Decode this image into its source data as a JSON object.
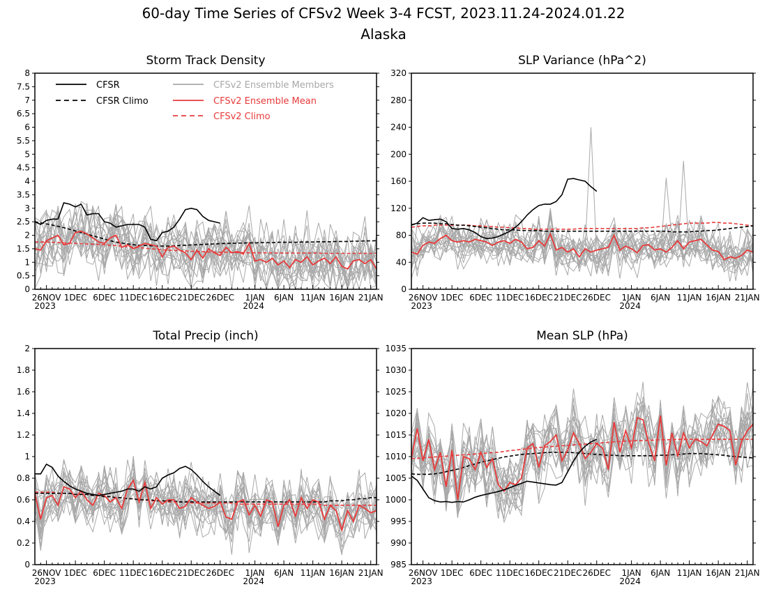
{
  "title": "60-day Time Series of CFSv2 Week 3-4 FCST, 2023.11.24-2024.01.22",
  "subtitle": "Alaska",
  "colors": {
    "cfsr": "#000000",
    "cfsr_climo": "#000000",
    "members": "#a8a8a8",
    "ens_mean": "#e83a3a",
    "cfsv2_climo": "#e83a3a"
  },
  "legend": {
    "cfsr": "CFSR",
    "cfsr_climo": "CFSR Climo",
    "members": "CFSv2 Ensemble Members",
    "ens_mean": "CFSv2 Ensemble Mean",
    "cfsv2_climo": "CFSv2 Climo"
  },
  "x_ticks": [
    {
      "day": 2,
      "label": "26NOV",
      "year": "2023"
    },
    {
      "day": 7,
      "label": "1DEC",
      "year": ""
    },
    {
      "day": 12,
      "label": "6DEC",
      "year": ""
    },
    {
      "day": 17,
      "label": "11DEC",
      "year": ""
    },
    {
      "day": 22,
      "label": "16DEC",
      "year": ""
    },
    {
      "day": 27,
      "label": "21DEC",
      "year": ""
    },
    {
      "day": 32,
      "label": "26DEC",
      "year": ""
    },
    {
      "day": 38,
      "label": "1JAN",
      "year": "2024"
    },
    {
      "day": 43,
      "label": "6JAN",
      "year": ""
    },
    {
      "day": 48,
      "label": "11JAN",
      "year": ""
    },
    {
      "day": 53,
      "label": "16JAN",
      "year": ""
    },
    {
      "day": 58,
      "label": "21JAN",
      "year": ""
    }
  ],
  "chart_data": [
    {
      "type": "line",
      "title": "Storm Track Density",
      "xrange": [
        0,
        59
      ],
      "ylim": [
        0,
        8
      ],
      "yticks": [
        0,
        0.5,
        1,
        1.5,
        2,
        2.5,
        3,
        3.5,
        4,
        4.5,
        5,
        5.5,
        6,
        6.5,
        7,
        7.5,
        8
      ],
      "show_legend": true,
      "cfsr": [
        2.5,
        2.4,
        2.55,
        2.6,
        2.6,
        3.2,
        3.15,
        3.05,
        3.15,
        2.75,
        2.8,
        2.8,
        2.5,
        2.45,
        2.3,
        2.35,
        2.4,
        2.4,
        2.4,
        2.3,
        1.85,
        1.8,
        2.1,
        2.15,
        2.3,
        2.6,
        2.95,
        3.0,
        2.95,
        2.7,
        2.55,
        2.5,
        2.45
      ],
      "cfsr_climo": [
        2.5,
        2.46,
        2.42,
        2.38,
        2.33,
        2.28,
        2.22,
        2.16,
        2.1,
        2.04,
        1.98,
        1.92,
        1.86,
        1.8,
        1.75,
        1.71,
        1.68,
        1.65,
        1.63,
        1.62,
        1.61,
        1.6,
        1.6,
        1.6,
        1.61,
        1.62,
        1.63,
        1.64,
        1.65,
        1.66,
        1.67,
        1.68,
        1.69,
        1.7,
        1.7,
        1.71,
        1.71,
        1.72,
        1.72,
        1.73,
        1.73,
        1.73,
        1.74,
        1.74,
        1.74,
        1.74,
        1.75,
        1.75,
        1.75,
        1.76,
        1.76,
        1.76,
        1.77,
        1.77,
        1.77,
        1.78,
        1.78,
        1.79,
        1.79,
        1.8
      ],
      "ens_mean": [
        1.5,
        1.45,
        1.8,
        1.9,
        2.0,
        1.65,
        1.7,
        2.1,
        2.15,
        2.05,
        1.9,
        1.75,
        1.7,
        1.9,
        2.0,
        1.55,
        1.65,
        1.5,
        1.6,
        1.7,
        1.65,
        1.6,
        1.2,
        1.55,
        1.6,
        1.45,
        1.35,
        1.1,
        1.45,
        1.15,
        1.5,
        1.35,
        1.25,
        1.55,
        1.35,
        1.4,
        1.3,
        1.7,
        1.05,
        1.1,
        1.0,
        1.15,
        0.9,
        1.05,
        0.8,
        1.1,
        1.0,
        1.2,
        0.9,
        1.05,
        1.15,
        0.95,
        1.2,
        0.85,
        0.75,
        1.05,
        1.1,
        0.95,
        1.1,
        0.75
      ],
      "cfsv2_climo": [
        1.75,
        1.75,
        1.75,
        1.74,
        1.73,
        1.72,
        1.71,
        1.7,
        1.69,
        1.68,
        1.67,
        1.66,
        1.65,
        1.63,
        1.62,
        1.6,
        1.58,
        1.56,
        1.54,
        1.52,
        1.5,
        1.48,
        1.46,
        1.45,
        1.44,
        1.43,
        1.42,
        1.41,
        1.4,
        1.39,
        1.38,
        1.38,
        1.37,
        1.37,
        1.36,
        1.36,
        1.36,
        1.35,
        1.35,
        1.35,
        1.35,
        1.35,
        1.34,
        1.34,
        1.34,
        1.34,
        1.34,
        1.34,
        1.34,
        1.34,
        1.33,
        1.33,
        1.33,
        1.33,
        1.33,
        1.33,
        1.33,
        1.33,
        1.33,
        1.33
      ],
      "members": {
        "count": 18,
        "spread": 0.75,
        "seed": 11
      }
    },
    {
      "type": "line",
      "title": "SLP Variance (hPa^2)",
      "xrange": [
        0,
        59
      ],
      "ylim": [
        0,
        320
      ],
      "yticks": [
        0,
        40,
        80,
        120,
        160,
        200,
        240,
        280,
        320
      ],
      "show_legend": false,
      "cfsr": [
        95,
        98,
        106,
        102,
        103,
        104,
        100,
        90,
        89,
        90,
        88,
        84,
        78,
        75,
        76,
        78,
        82,
        86,
        92,
        100,
        110,
        118,
        124,
        126,
        126,
        130,
        140,
        163,
        164,
        162,
        160,
        152,
        145
      ],
      "cfsr_climo": [
        96,
        97,
        98,
        98,
        98,
        97,
        97,
        96,
        95,
        95,
        94,
        93,
        92,
        91,
        90,
        89,
        88,
        88,
        88,
        87,
        87,
        87,
        87,
        86,
        86,
        86,
        86,
        86,
        86,
        86,
        86,
        86,
        86,
        86,
        86,
        86,
        86,
        86,
        86,
        86,
        86,
        86,
        86,
        86,
        86,
        85,
        85,
        85,
        85,
        86,
        86,
        87,
        87,
        88,
        89,
        90,
        91,
        92,
        93,
        94
      ],
      "ens_mean": [
        55,
        52,
        65,
        70,
        68,
        75,
        80,
        72,
        70,
        72,
        70,
        74,
        72,
        70,
        65,
        70,
        72,
        68,
        74,
        70,
        60,
        62,
        72,
        64,
        82,
        58,
        62,
        55,
        60,
        48,
        60,
        55,
        58,
        60,
        62,
        80,
        58,
        64,
        60,
        54,
        65,
        66,
        58,
        60,
        55,
        62,
        72,
        60,
        70,
        72,
        74,
        66,
        58,
        56,
        44,
        48,
        46,
        50,
        58,
        55
      ],
      "cfsv2_climo": [
        92,
        93,
        94,
        94,
        95,
        95,
        95,
        95,
        95,
        95,
        95,
        94,
        94,
        93,
        93,
        92,
        92,
        91,
        91,
        90,
        90,
        89,
        89,
        89,
        89,
        89,
        89,
        89,
        89,
        90,
        90,
        90,
        90,
        90,
        90,
        90,
        90,
        90,
        90,
        90,
        91,
        91,
        92,
        93,
        94,
        95,
        96,
        97,
        98,
        98,
        98,
        98,
        99,
        99,
        98,
        98,
        97,
        96,
        95,
        94
      ],
      "members": {
        "count": 18,
        "spread": 20,
        "seed": 23
      },
      "member_spikes": [
        {
          "day": 31,
          "value": 240
        },
        {
          "day": 47,
          "value": 190
        },
        {
          "day": 44,
          "value": 165
        }
      ]
    },
    {
      "type": "line",
      "title": "Total Precip (inch)",
      "xrange": [
        0,
        59
      ],
      "ylim": [
        0,
        2
      ],
      "yticks": [
        0,
        0.2,
        0.4,
        0.6,
        0.8,
        1,
        1.2,
        1.4,
        1.6,
        1.8,
        2
      ],
      "show_legend": false,
      "cfsr": [
        0.84,
        0.84,
        0.93,
        0.9,
        0.82,
        0.77,
        0.73,
        0.7,
        0.68,
        0.66,
        0.65,
        0.64,
        0.65,
        0.66,
        0.67,
        0.68,
        0.7,
        0.7,
        0.68,
        0.72,
        0.7,
        0.72,
        0.8,
        0.83,
        0.85,
        0.89,
        0.91,
        0.88,
        0.83,
        0.77,
        0.72,
        0.68,
        0.64
      ],
      "cfsr_climo": [
        0.66,
        0.66,
        0.66,
        0.66,
        0.66,
        0.66,
        0.66,
        0.65,
        0.65,
        0.65,
        0.64,
        0.64,
        0.63,
        0.63,
        0.62,
        0.62,
        0.61,
        0.61,
        0.6,
        0.6,
        0.6,
        0.59,
        0.59,
        0.59,
        0.59,
        0.58,
        0.58,
        0.58,
        0.58,
        0.58,
        0.58,
        0.58,
        0.58,
        0.58,
        0.58,
        0.58,
        0.58,
        0.58,
        0.58,
        0.58,
        0.58,
        0.58,
        0.58,
        0.58,
        0.58,
        0.58,
        0.58,
        0.58,
        0.58,
        0.58,
        0.58,
        0.59,
        0.59,
        0.59,
        0.6,
        0.6,
        0.61,
        0.61,
        0.62,
        0.62
      ],
      "ens_mean": [
        0.66,
        0.42,
        0.62,
        0.64,
        0.55,
        0.72,
        0.7,
        0.62,
        0.68,
        0.6,
        0.55,
        0.66,
        0.64,
        0.58,
        0.62,
        0.52,
        0.7,
        0.78,
        0.58,
        0.76,
        0.52,
        0.62,
        0.56,
        0.6,
        0.6,
        0.52,
        0.54,
        0.62,
        0.58,
        0.55,
        0.52,
        0.54,
        0.58,
        0.44,
        0.42,
        0.58,
        0.6,
        0.46,
        0.55,
        0.45,
        0.6,
        0.58,
        0.35,
        0.55,
        0.6,
        0.45,
        0.62,
        0.52,
        0.6,
        0.58,
        0.42,
        0.55,
        0.5,
        0.32,
        0.5,
        0.4,
        0.55,
        0.52,
        0.48,
        0.5
      ],
      "cfsv2_climo": [
        0.67,
        0.67,
        0.67,
        0.67,
        0.66,
        0.66,
        0.66,
        0.65,
        0.65,
        0.65,
        0.64,
        0.64,
        0.63,
        0.63,
        0.62,
        0.62,
        0.61,
        0.61,
        0.6,
        0.6,
        0.59,
        0.59,
        0.59,
        0.58,
        0.58,
        0.58,
        0.58,
        0.57,
        0.57,
        0.57,
        0.57,
        0.57,
        0.57,
        0.57,
        0.57,
        0.56,
        0.56,
        0.56,
        0.56,
        0.56,
        0.56,
        0.56,
        0.56,
        0.56,
        0.56,
        0.56,
        0.56,
        0.56,
        0.56,
        0.56,
        0.55,
        0.55,
        0.55,
        0.55,
        0.55,
        0.55,
        0.55,
        0.55,
        0.55,
        0.55
      ],
      "members": {
        "count": 18,
        "spread": 0.16,
        "seed": 37
      }
    },
    {
      "type": "line",
      "title": "Mean SLP (hPa)",
      "xrange": [
        0,
        59
      ],
      "ylim": [
        985,
        1035
      ],
      "yticks": [
        985,
        990,
        995,
        1000,
        1005,
        1010,
        1015,
        1020,
        1025,
        1030,
        1035
      ],
      "show_legend": false,
      "cfsr": [
        1005.5,
        1004.5,
        1002.5,
        1000.5,
        999.8,
        999.5,
        999.6,
        999.4,
        999.6,
        999.5,
        1000.0,
        1000.6,
        1001.0,
        1001.3,
        1001.6,
        1001.9,
        1002.3,
        1002.8,
        1003.3,
        1003.8,
        1004.3,
        1004.1,
        1003.9,
        1003.7,
        1003.5,
        1003.4,
        1004.0,
        1006.5,
        1009.0,
        1011.0,
        1012.4,
        1013.4,
        1014.0
      ],
      "cfsr_climo": [
        1006.0,
        1005.9,
        1005.9,
        1005.9,
        1006.0,
        1006.2,
        1006.5,
        1006.8,
        1007.1,
        1007.5,
        1007.9,
        1008.3,
        1008.7,
        1009.0,
        1009.3,
        1009.6,
        1009.9,
        1010.1,
        1010.3,
        1010.5,
        1010.6,
        1010.7,
        1010.8,
        1010.9,
        1011.0,
        1011.0,
        1011.0,
        1011.0,
        1010.9,
        1010.8,
        1010.7,
        1010.6,
        1010.5,
        1010.4,
        1010.3,
        1010.3,
        1010.2,
        1010.2,
        1010.2,
        1010.2,
        1010.2,
        1010.2,
        1010.2,
        1010.3,
        1010.3,
        1010.4,
        1010.5,
        1010.6,
        1010.7,
        1010.7,
        1010.7,
        1010.6,
        1010.5,
        1010.4,
        1010.3,
        1010.1,
        1010.0,
        1009.9,
        1009.8,
        1009.7
      ],
      "ens_mean": [
        1009.5,
        1016.5,
        1009.0,
        1014.0,
        1007.0,
        1011.0,
        1003.0,
        1011.5,
        1000.0,
        1010.0,
        1009.5,
        1007.0,
        1011.0,
        1007.5,
        1009.5,
        1003.5,
        1002.0,
        1004.0,
        1003.5,
        1005.0,
        1012.0,
        1013.0,
        1007.5,
        1012.5,
        1013.5,
        1015.0,
        1009.0,
        1011.5,
        1015.5,
        1013.0,
        1009.5,
        1011.0,
        1013.0,
        1012.0,
        1007.0,
        1018.0,
        1011.0,
        1016.0,
        1012.0,
        1019.0,
        1018.5,
        1013.0,
        1009.0,
        1019.5,
        1008.0,
        1015.5,
        1010.0,
        1015.5,
        1012.0,
        1014.0,
        1013.5,
        1012.5,
        1015.0,
        1017.5,
        1017.0,
        1016.0,
        1008.0,
        1013.5,
        1016.0,
        1017.5
      ],
      "cfsv2_climo": [
        1009.5,
        1009.6,
        1009.7,
        1009.8,
        1009.9,
        1010.0,
        1010.1,
        1010.2,
        1010.3,
        1010.4,
        1010.5,
        1010.6,
        1010.7,
        1010.8,
        1010.9,
        1011.0,
        1011.2,
        1011.4,
        1011.5,
        1011.7,
        1011.8,
        1012.0,
        1012.1,
        1012.2,
        1012.3,
        1012.4,
        1012.5,
        1012.6,
        1012.7,
        1012.8,
        1012.9,
        1013.0,
        1013.1,
        1013.2,
        1013.3,
        1013.4,
        1013.5,
        1013.6,
        1013.6,
        1013.7,
        1013.7,
        1013.8,
        1013.8,
        1013.9,
        1013.9,
        1013.9,
        1014.0,
        1014.0,
        1014.0,
        1014.0,
        1014.0,
        1014.0,
        1014.0,
        1014.0,
        1014.0,
        1014.0,
        1014.0,
        1014.0,
        1014.0,
        1014.0
      ],
      "members": {
        "count": 18,
        "spread": 5.0,
        "seed": 53
      }
    }
  ]
}
